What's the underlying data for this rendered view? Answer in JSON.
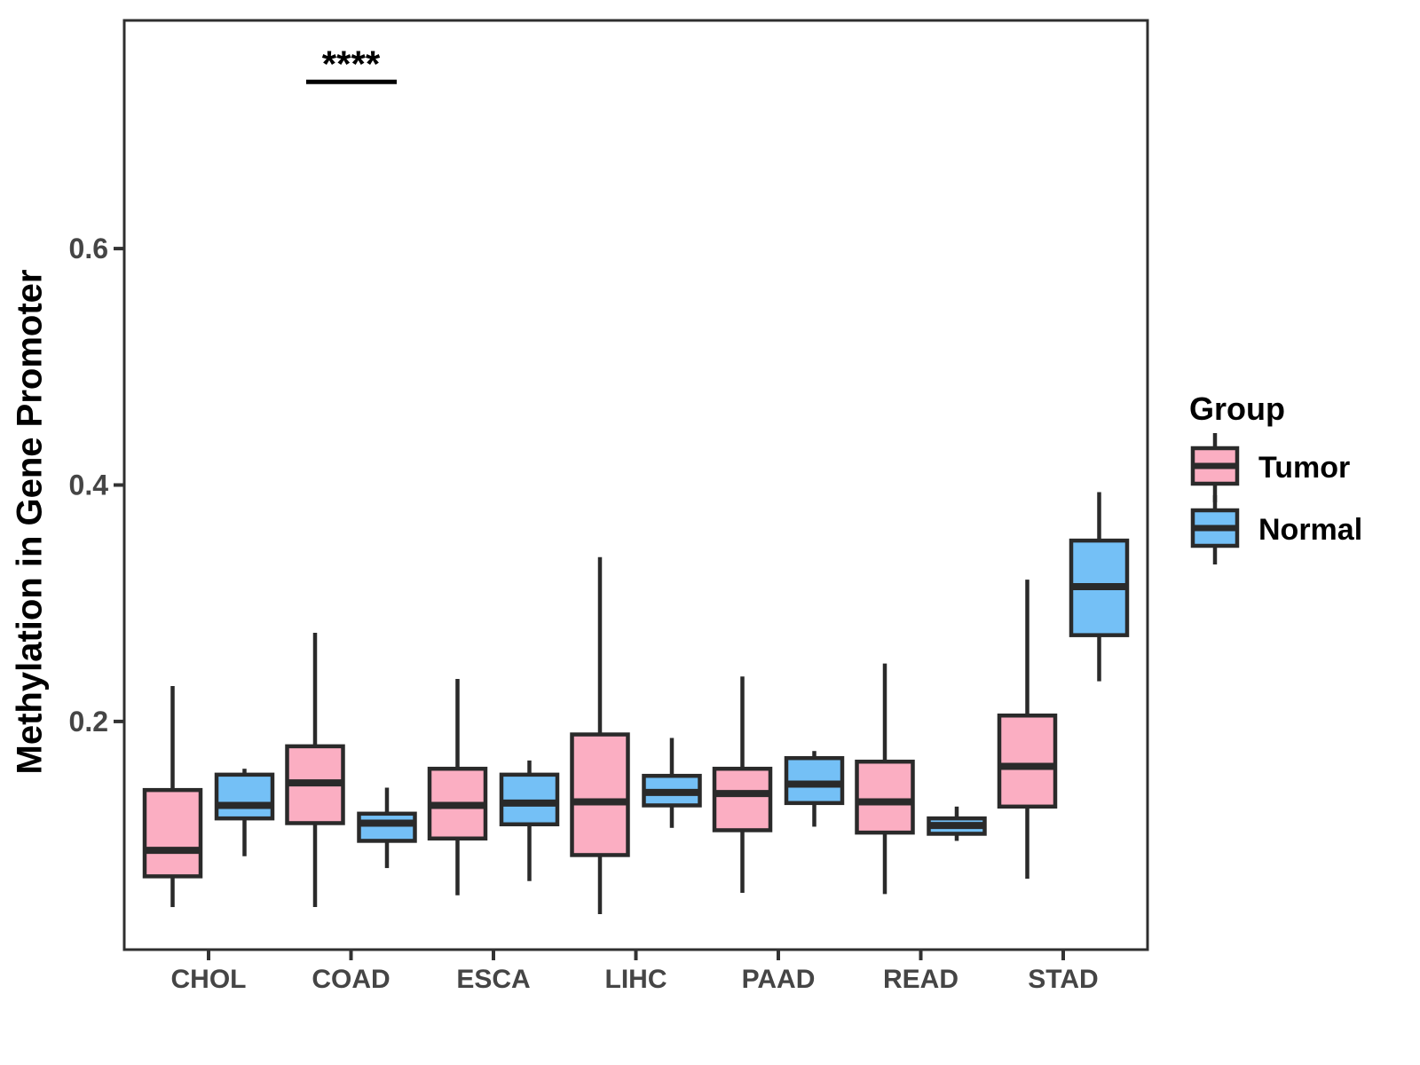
{
  "chart_data": {
    "type": "grouped_boxplot",
    "title": "",
    "xlabel": "",
    "ylabel": "Methylation in Gene Promoter",
    "categories": [
      "CHOL",
      "COAD",
      "ESCA",
      "LIHC",
      "PAAD",
      "READ",
      "STAD"
    ],
    "y_ticks": [
      0.2,
      0.4,
      0.6
    ],
    "y_tick_labels": [
      "0.2",
      "0.4",
      "0.6"
    ],
    "ylim": [
      0.007,
      0.793
    ],
    "grid": "off",
    "legend": {
      "title": "Group",
      "position": "right"
    },
    "series": [
      {
        "name": "Tumor",
        "color": "#FBAEC2",
        "boxes": [
          {
            "category": "CHOL",
            "whisker_low": 0.043,
            "q1": 0.069,
            "median": 0.091,
            "q3": 0.142,
            "whisker_high": 0.23
          },
          {
            "category": "COAD",
            "whisker_low": 0.043,
            "q1": 0.114,
            "median": 0.148,
            "q3": 0.179,
            "whisker_high": 0.275
          },
          {
            "category": "ESCA",
            "whisker_low": 0.053,
            "q1": 0.101,
            "median": 0.129,
            "q3": 0.16,
            "whisker_high": 0.236
          },
          {
            "category": "LIHC",
            "whisker_low": 0.037,
            "q1": 0.087,
            "median": 0.132,
            "q3": 0.189,
            "whisker_high": 0.339
          },
          {
            "category": "PAAD",
            "whisker_low": 0.055,
            "q1": 0.108,
            "median": 0.139,
            "q3": 0.16,
            "whisker_high": 0.238
          },
          {
            "category": "READ",
            "whisker_low": 0.054,
            "q1": 0.106,
            "median": 0.132,
            "q3": 0.166,
            "whisker_high": 0.249
          },
          {
            "category": "STAD",
            "whisker_low": 0.067,
            "q1": 0.128,
            "median": 0.162,
            "q3": 0.205,
            "whisker_high": 0.32
          }
        ]
      },
      {
        "name": "Normal",
        "color": "#74C0F6",
        "boxes": [
          {
            "category": "CHOL",
            "whisker_low": 0.086,
            "q1": 0.118,
            "median": 0.129,
            "q3": 0.155,
            "whisker_high": 0.16
          },
          {
            "category": "COAD",
            "whisker_low": 0.076,
            "q1": 0.099,
            "median": 0.114,
            "q3": 0.122,
            "whisker_high": 0.144
          },
          {
            "category": "ESCA",
            "whisker_low": 0.065,
            "q1": 0.113,
            "median": 0.131,
            "q3": 0.155,
            "whisker_high": 0.167
          },
          {
            "category": "LIHC",
            "whisker_low": 0.11,
            "q1": 0.129,
            "median": 0.14,
            "q3": 0.154,
            "whisker_high": 0.186
          },
          {
            "category": "PAAD",
            "whisker_low": 0.111,
            "q1": 0.131,
            "median": 0.147,
            "q3": 0.169,
            "whisker_high": 0.175
          },
          {
            "category": "READ",
            "whisker_low": 0.099,
            "q1": 0.105,
            "median": 0.112,
            "q3": 0.118,
            "whisker_high": 0.128
          },
          {
            "category": "STAD",
            "whisker_low": 0.234,
            "q1": 0.273,
            "median": 0.314,
            "q3": 0.353,
            "whisker_high": 0.394
          }
        ]
      }
    ],
    "annotations": [
      {
        "label": "****",
        "category": "COAD",
        "between": [
          "Tumor",
          "Normal"
        ],
        "y": 0.741
      }
    ]
  },
  "colors": {
    "box_outline": "#2A2A2A",
    "panel_border": "#2F2F2F",
    "tick_mark": "#333333",
    "axis_tick_text": "#454545",
    "annotation": "#000000",
    "background": "#FFFFFF"
  }
}
